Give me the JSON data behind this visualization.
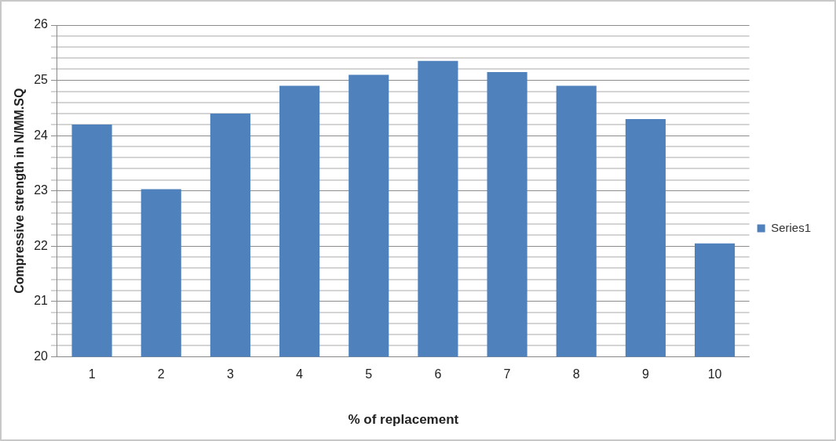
{
  "chart_data": {
    "type": "bar",
    "xlabel": "% of replacement",
    "ylabel": "Compressive strength in N/MM.SQ",
    "categories": [
      "1",
      "2",
      "3",
      "4",
      "5",
      "6",
      "7",
      "8",
      "9",
      "10"
    ],
    "series": [
      {
        "name": "Series1",
        "color": "#4f81bd",
        "values": [
          24.2,
          23.03,
          24.4,
          24.9,
          25.1,
          25.35,
          25.15,
          24.9,
          24.3,
          22.05
        ]
      }
    ],
    "ylim": [
      20,
      26
    ],
    "yticks": [
      20,
      {
        "value": 20.2,
        "label": null
      },
      {
        "value": 20.4,
        "label": null
      },
      {
        "value": 20.6,
        "label": null
      },
      {
        "value": 20.8,
        "label": null
      },
      21,
      {
        "value": 21.2,
        "label": null
      },
      {
        "value": 21.4,
        "label": null
      },
      {
        "value": 21.6,
        "label": null
      },
      {
        "value": 21.8,
        "label": null
      },
      22,
      {
        "value": 22.2,
        "label": null
      },
      {
        "value": 22.4,
        "label": null
      },
      {
        "value": 22.6,
        "label": null
      },
      {
        "value": 22.8,
        "label": null
      },
      23,
      {
        "value": 23.2,
        "label": null
      },
      {
        "value": 23.4,
        "label": null
      },
      {
        "value": 23.6,
        "label": null
      },
      {
        "value": 23.8,
        "label": null
      },
      24,
      {
        "value": 24.2,
        "label": null
      },
      {
        "value": 24.4,
        "label": null
      },
      {
        "value": 24.6,
        "label": null
      },
      {
        "value": 24.8,
        "label": null
      },
      25,
      {
        "value": 25.2,
        "label": null
      },
      {
        "value": 25.4,
        "label": null
      },
      {
        "value": 25.6,
        "label": null
      },
      {
        "value": 25.8,
        "label": null
      },
      26
    ],
    "grid": "y",
    "legend": "right"
  }
}
